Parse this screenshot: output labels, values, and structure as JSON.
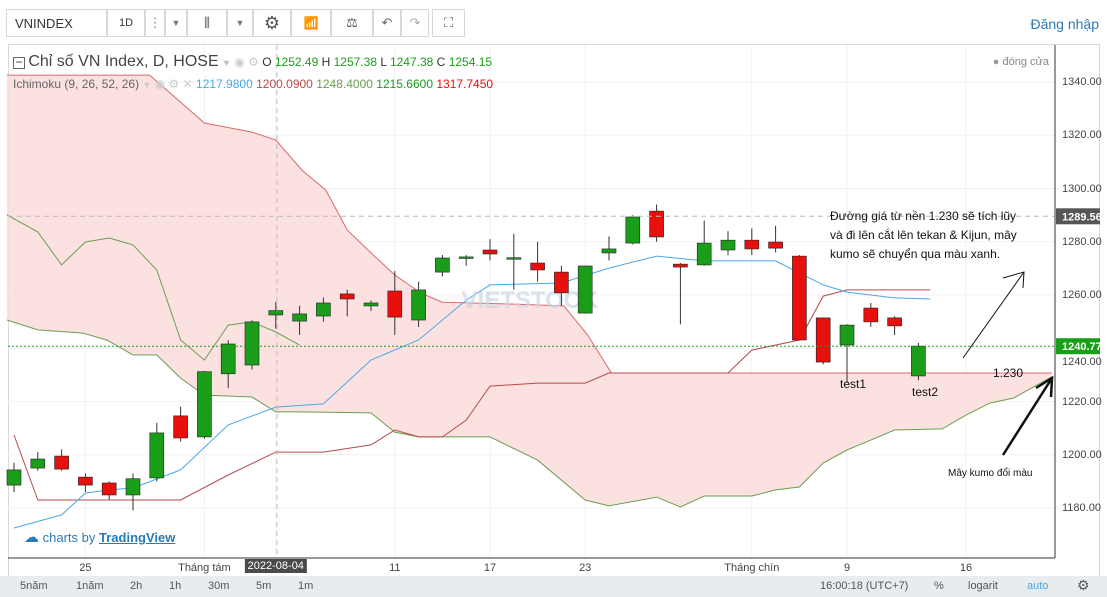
{
  "toolbar": {
    "symbol": "VNINDEX",
    "interval": "1D",
    "login": "Đăng nhập"
  },
  "legend": {
    "title": "Chỉ số VN Index, D, HOSE",
    "o_label": "O",
    "o": "1252.49",
    "h_label": "H",
    "h": "1257.38",
    "l_label": "L",
    "l": "1247.38",
    "c_label": "C",
    "c": "1254.15",
    "close_mode": "đóng cửa",
    "ichimoku": "Ichimoku (9, 26, 52, 26)",
    "ich_values": [
      "1217.9800",
      "1200.0900",
      "1248.4000",
      "1215.6600",
      "1317.7450"
    ]
  },
  "colors": {
    "up": "#1a9e1a",
    "down": "#e8100d",
    "tenkan": "#4aa8e8",
    "kijun": "#b84a4a",
    "senkou_a": "#6a9e52",
    "senkou_b": "#d96a6a",
    "chikou": "#6a9e52",
    "cloud": "#fcdcdc",
    "link": "#2a7ab8"
  },
  "chart_data": {
    "type": "candlestick",
    "y_ticks": [
      "1340.00",
      "1320.00",
      "1300.00",
      "1280.00",
      "1260.00",
      "1240.00",
      "1220.00",
      "1200.00",
      "1180.00"
    ],
    "y_tick_values": [
      1340,
      1320,
      1300,
      1280,
      1260,
      1240,
      1220,
      1200,
      1180
    ],
    "ylim": [
      1160,
      1345
    ],
    "x_labels": [
      {
        "i": 3,
        "t": "25"
      },
      {
        "i": 8,
        "t": "Tháng tám"
      },
      {
        "i": 11,
        "t": "2022-08-04",
        "hl": true
      },
      {
        "i": 16,
        "t": "11"
      },
      {
        "i": 20,
        "t": "17"
      },
      {
        "i": 24,
        "t": "23"
      },
      {
        "i": 31,
        "t": "Tháng chín"
      },
      {
        "i": 35,
        "t": "9"
      },
      {
        "i": 40,
        "t": "16"
      }
    ],
    "candles": [
      [
        1188.6,
        1197,
        1186,
        1194.3
      ],
      [
        1195,
        1201,
        1194,
        1198.4
      ],
      [
        1199.5,
        1202,
        1194,
        1194.6
      ],
      [
        1191.6,
        1193,
        1186,
        1188.6
      ],
      [
        1189.4,
        1190,
        1183,
        1184.9
      ],
      [
        1184.9,
        1193,
        1179,
        1191
      ],
      [
        1191.3,
        1212,
        1190,
        1208.2
      ],
      [
        1214.6,
        1218,
        1205,
        1206.3
      ],
      [
        1206.7,
        1231.5,
        1206,
        1231.2
      ],
      [
        1230.4,
        1243,
        1225,
        1241.6
      ],
      [
        1233.7,
        1250.5,
        1232,
        1249.9
      ],
      [
        1252.49,
        1257.38,
        1247.38,
        1254.15
      ],
      [
        1250.2,
        1256,
        1245,
        1252.9
      ],
      [
        1252.1,
        1259,
        1250,
        1257
      ],
      [
        1260.4,
        1262,
        1252,
        1258.5
      ],
      [
        1255.9,
        1258,
        1254,
        1257
      ],
      [
        1261.5,
        1269,
        1245,
        1251.7
      ],
      [
        1250.6,
        1265,
        1248,
        1261.9
      ],
      [
        1268.6,
        1275,
        1267,
        1273.9
      ],
      [
        1273.9,
        1275,
        1271,
        1274.3
      ],
      [
        1276.9,
        1281,
        1273,
        1275.4
      ],
      [
        1273.5,
        1283,
        1262,
        1274
      ],
      [
        1272,
        1280,
        1265,
        1269.4
      ],
      [
        1268.6,
        1271,
        1256,
        1260.8
      ],
      [
        1253.2,
        1271,
        1253,
        1270.9
      ],
      [
        1275.8,
        1282,
        1273,
        1277.3
      ],
      [
        1279.5,
        1290,
        1279,
        1289.3
      ],
      [
        1291.5,
        1294,
        1280,
        1281.8
      ],
      [
        1271.6,
        1272,
        1249,
        1270.5
      ],
      [
        1271.3,
        1288,
        1271,
        1279.5
      ],
      [
        1276.9,
        1284,
        1275,
        1280.6
      ],
      [
        1280.6,
        1285,
        1275,
        1277.3
      ],
      [
        1279.9,
        1286,
        1276,
        1277.6
      ],
      [
        1274.6,
        1275,
        1243,
        1243.1
      ],
      [
        1251.4,
        1251.5,
        1234,
        1234.8
      ],
      [
        1241.2,
        1249,
        1227,
        1248.7
      ],
      [
        1255.1,
        1257,
        1248,
        1249.9
      ],
      [
        1251.4,
        1252,
        1245,
        1248.4
      ],
      [
        1229.6,
        1242,
        1228,
        1240.8
      ]
    ],
    "tenkan": [
      [
        0,
        1172.5
      ],
      [
        2,
        1177.4
      ],
      [
        3,
        1185.6
      ],
      [
        4,
        1186.8
      ],
      [
        5,
        1187.5
      ],
      [
        7,
        1194.3
      ],
      [
        9,
        1211.2
      ],
      [
        11,
        1217.9
      ],
      [
        13,
        1219.1
      ],
      [
        15,
        1235.6
      ],
      [
        17,
        1243.1
      ],
      [
        19,
        1258.1
      ],
      [
        20,
        1263.8
      ],
      [
        23,
        1264.5
      ],
      [
        25,
        1270.1
      ],
      [
        27,
        1274.6
      ],
      [
        29,
        1272.8
      ],
      [
        32,
        1272.8
      ],
      [
        34,
        1263.8
      ],
      [
        35,
        1261.1
      ],
      [
        37,
        1258.9
      ],
      [
        38.5,
        1258.5
      ]
    ],
    "kijun": [
      [
        0,
        1207.4
      ],
      [
        1,
        1183
      ],
      [
        7,
        1183
      ],
      [
        9,
        1192.4
      ],
      [
        11,
        1201
      ],
      [
        13,
        1201
      ],
      [
        15,
        1203.7
      ],
      [
        16,
        1209.3
      ],
      [
        17,
        1206.7
      ],
      [
        18,
        1206.7
      ],
      [
        19,
        1213
      ],
      [
        20,
        1225.8
      ],
      [
        22,
        1226.9
      ],
      [
        24,
        1226.9
      ],
      [
        25,
        1230.7
      ],
      [
        30,
        1230.7
      ],
      [
        31,
        1239.3
      ],
      [
        33,
        1243.1
      ],
      [
        34,
        1259.6
      ],
      [
        35,
        1261.9
      ],
      [
        38.5,
        1261.9
      ]
    ],
    "senkou_b": [
      [
        -0.3,
        1342.6
      ],
      [
        5.7,
        1342.6
      ],
      [
        8,
        1324.6
      ],
      [
        10,
        1321.2
      ],
      [
        11,
        1318.2
      ],
      [
        12.1,
        1306.9
      ],
      [
        13.1,
        1299.4
      ],
      [
        14,
        1284.4
      ],
      [
        15,
        1275.8
      ],
      [
        16,
        1267.5
      ],
      [
        17.1,
        1260.7
      ],
      [
        18,
        1257.3
      ],
      [
        21,
        1256.6
      ],
      [
        23.1,
        1255.9
      ],
      [
        24.1,
        1245
      ],
      [
        25.1,
        1230.7
      ],
      [
        43.6,
        1230.7
      ]
    ],
    "senkou_a": [
      [
        -0.3,
        1250.6
      ],
      [
        1,
        1246.9
      ],
      [
        2.9,
        1245.7
      ],
      [
        3.9,
        1243.1
      ],
      [
        5,
        1237.5
      ],
      [
        6,
        1237.5
      ],
      [
        7,
        1228.8
      ],
      [
        8,
        1222.4
      ],
      [
        10,
        1221.7
      ],
      [
        11,
        1216.1
      ],
      [
        12,
        1216.1
      ],
      [
        15,
        1215.7
      ],
      [
        16,
        1208.5
      ],
      [
        17,
        1206.7
      ],
      [
        20,
        1206.7
      ],
      [
        22,
        1198
      ],
      [
        24,
        1183
      ],
      [
        25,
        1180.8
      ],
      [
        27,
        1184.1
      ],
      [
        28,
        1180.4
      ],
      [
        29,
        1184.5
      ],
      [
        31,
        1184.5
      ],
      [
        32,
        1186.8
      ],
      [
        33,
        1187.9
      ],
      [
        34,
        1196.9
      ],
      [
        35,
        1201.8
      ],
      [
        36,
        1205.5
      ],
      [
        37,
        1209.3
      ],
      [
        39,
        1209.7
      ],
      [
        40,
        1214.9
      ],
      [
        41,
        1219.4
      ],
      [
        42,
        1221.3
      ],
      [
        43.6,
        1229.2
      ]
    ],
    "chikou": [
      [
        -0.3,
        1290.1
      ],
      [
        1,
        1283.7
      ],
      [
        2,
        1271.3
      ],
      [
        3,
        1279.9
      ],
      [
        4,
        1281.4
      ],
      [
        5,
        1278.8
      ],
      [
        6,
        1269.4
      ],
      [
        7,
        1243.1
      ],
      [
        8,
        1235.6
      ],
      [
        9,
        1248.7
      ],
      [
        10,
        1249.9
      ],
      [
        11,
        1246.1
      ],
      [
        12,
        1241.2
      ]
    ],
    "crosshair_price": "1289.56",
    "crosshair_value": 1289.56,
    "last_price": "1240.77",
    "last_value": 1240.77
  },
  "annotations": {
    "main": [
      "Đường giá từ nền 1.230 sẽ tích lũy",
      "và đi lên cắt lên tekan & Kijun, mây",
      "kumo sẽ chuyển qua màu xanh."
    ],
    "test1": "test1",
    "test2": "test2",
    "level": "1.230",
    "cloud_note": "Mây kumo đổi màu"
  },
  "watermark": "VIETSTOCK",
  "branding": {
    "prefix": "charts by",
    "name": "TradingView"
  },
  "bottombar": {
    "ranges": [
      "5năm",
      "1năm",
      "2h",
      "1h",
      "30m",
      "5m",
      "1m"
    ],
    "time": "16:00:18 (UTC+7)",
    "percent": "%",
    "log": "logarit",
    "auto": "auto"
  }
}
